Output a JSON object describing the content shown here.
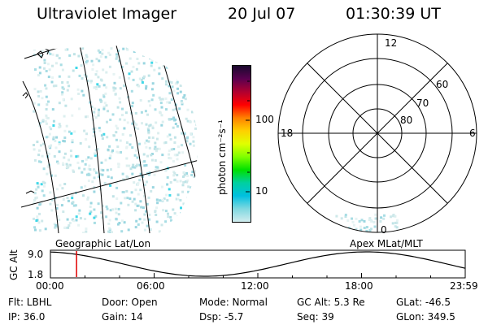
{
  "header": {
    "title": "Ultraviolet Imager",
    "date": "20 Jul 07",
    "time": "01:30:39 UT"
  },
  "colorbar": {
    "label": "photon cm⁻²s⁻¹",
    "ticks": [
      "100",
      "10"
    ],
    "scale": "log",
    "colors": [
      "#1a0a2e",
      "#5a0050",
      "#b00030",
      "#ff0000",
      "#ff8000",
      "#ffd000",
      "#e0ff00",
      "#80ff00",
      "#00e000",
      "#00d0a0",
      "#00c0e0",
      "#80d8e0",
      "#d0ecee"
    ]
  },
  "polar_plot": {
    "mlt_labels": {
      "top": "12",
      "left": "18",
      "right": "6",
      "bottom": "0"
    },
    "lat_labels": [
      "60",
      "70",
      "80"
    ]
  },
  "left_panel_label": "Geographic Lat/Lon",
  "right_panel_label": "Apex MLat/MLT",
  "altitude_strip": {
    "ylabel": "GC Alt",
    "ymax": "9.0",
    "ymin": "1.8",
    "time_ticks": [
      "00:00",
      "06:00",
      "12:00",
      "18:00",
      "23:59"
    ],
    "current_time_fraction": 0.063,
    "marker_color": "#e00000"
  },
  "info": {
    "row1": {
      "flt": "Flt: LBHL",
      "door": "Door: Open",
      "mode": "Mode: Normal",
      "gcalt": "GC Alt: 5.3 Re",
      "glat": "GLat:  -46.5"
    },
    "row2": {
      "ip": "IP: 36.0",
      "gain": "Gain: 14",
      "dsp": "Dsp:    -5.7",
      "seq": "Seq: 39",
      "glon": "GLon: 349.5"
    }
  }
}
